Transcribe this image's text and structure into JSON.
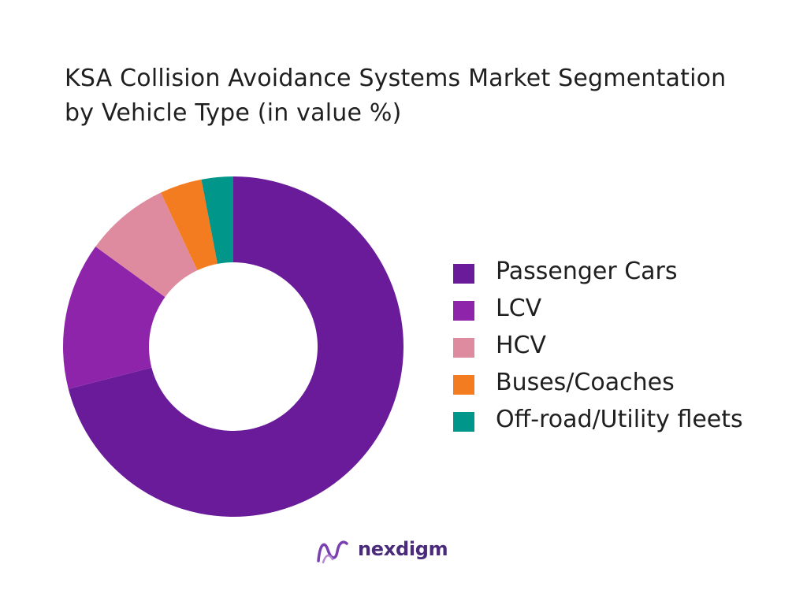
{
  "title_lines": [
    "KSA Collision Avoidance Systems Market Segmentation",
    "by Vehicle Type (in value %)"
  ],
  "chart_data": {
    "type": "pie",
    "title": "KSA Collision Avoidance Systems Market Segmentation by Vehicle Type (in value %)",
    "donut": true,
    "legend_position": "right",
    "categories": [
      "Passenger Cars",
      "LCV",
      "HCV",
      "Buses/Coaches",
      "Off-road/Utility fleets"
    ],
    "values": [
      71,
      14,
      8,
      4,
      3
    ],
    "colors": [
      "#6a1b9a",
      "#8e24aa",
      "#de8ba0",
      "#f47c20",
      "#00968a"
    ]
  },
  "brand": {
    "name": "nexdigm",
    "color": "#4a2a7a"
  }
}
